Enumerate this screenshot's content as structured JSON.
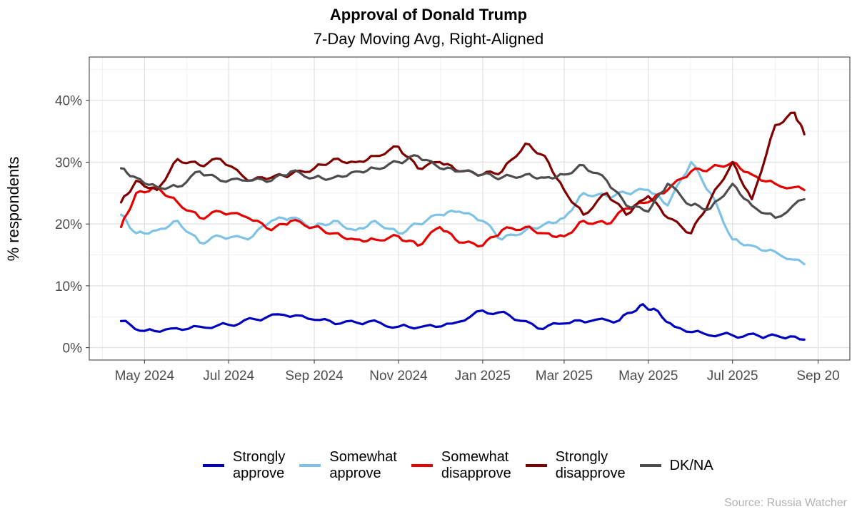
{
  "chart_data": {
    "type": "line",
    "title": "Approval of Donald Trump",
    "subtitle": "7-Day Moving Avg, Right-Aligned",
    "ylabel": "% respondents",
    "xlabel": "",
    "x_axis_type": "date",
    "xlim": [
      "2024-03-22",
      "2025-09-24"
    ],
    "ylim": [
      -2,
      47
    ],
    "y_ticks": [
      0,
      10,
      20,
      30,
      40
    ],
    "y_tick_labels": [
      "0%",
      "10%",
      "20%",
      "30%",
      "40%"
    ],
    "x_ticks": [
      "2024-05-01",
      "2024-07-01",
      "2024-09-01",
      "2024-11-01",
      "2025-01-01",
      "2025-03-01",
      "2025-05-01",
      "2025-07-01",
      "2025-09-01"
    ],
    "x_tick_labels": [
      "May 2024",
      "Jul 2024",
      "Sep 2024",
      "Nov 2024",
      "Jan 2025",
      "Mar 2025",
      "May 2025",
      "Jul 2025",
      "Sep 20"
    ],
    "grid": true,
    "legend_position": "bottom",
    "source": "Source: Russia Watcher",
    "series": [
      {
        "name": "Strongly\napprove",
        "color": "#0000bf",
        "x": [
          "2024-04-14",
          "2024-05-01",
          "2024-05-20",
          "2024-06-10",
          "2024-07-01",
          "2024-07-20",
          "2024-08-10",
          "2024-09-01",
          "2024-09-20",
          "2024-10-10",
          "2024-11-01",
          "2024-11-20",
          "2024-12-10",
          "2025-01-01",
          "2025-01-20",
          "2025-02-10",
          "2025-03-01",
          "2025-03-20",
          "2025-04-10",
          "2025-04-25",
          "2025-05-05",
          "2025-05-20",
          "2025-06-10",
          "2025-07-01",
          "2025-07-20",
          "2025-08-05",
          "2025-08-22"
        ],
        "y": [
          4.3,
          2.7,
          3.1,
          3.4,
          3.7,
          4.6,
          5.3,
          4.5,
          3.9,
          4.2,
          3.4,
          3.5,
          3.9,
          6.0,
          5.3,
          3.1,
          3.9,
          4.3,
          4.4,
          6.8,
          6.3,
          3.4,
          2.3,
          2.0,
          1.9,
          1.7,
          1.3
        ]
      },
      {
        "name": "Somewhat\napprove",
        "color": "#7ec3e6",
        "x": [
          "2024-04-14",
          "2024-04-25",
          "2024-05-10",
          "2024-05-25",
          "2024-06-10",
          "2024-06-25",
          "2024-07-15",
          "2024-08-01",
          "2024-08-15",
          "2024-09-01",
          "2024-09-15",
          "2024-10-01",
          "2024-10-15",
          "2024-11-01",
          "2024-11-15",
          "2024-12-01",
          "2024-12-15",
          "2025-01-01",
          "2025-01-15",
          "2025-02-01",
          "2025-02-15",
          "2025-03-01",
          "2025-03-15",
          "2025-04-01",
          "2025-04-15",
          "2025-05-01",
          "2025-05-15",
          "2025-06-01",
          "2025-06-15",
          "2025-07-01",
          "2025-07-15",
          "2025-08-01",
          "2025-08-22"
        ],
        "y": [
          21.5,
          18.5,
          19.0,
          20.5,
          17.0,
          18.0,
          17.5,
          20.5,
          21.0,
          19.5,
          20.5,
          19.0,
          20.5,
          18.5,
          20.0,
          21.5,
          22.0,
          20.5,
          17.5,
          19.0,
          20.0,
          21.0,
          25.0,
          24.5,
          25.0,
          25.5,
          23.0,
          30.0,
          25.0,
          17.5,
          16.5,
          15.5,
          13.5
        ]
      },
      {
        "name": "Somewhat\ndisapprove",
        "color": "#e60000",
        "x": [
          "2024-04-14",
          "2024-04-25",
          "2024-05-10",
          "2024-05-25",
          "2024-06-10",
          "2024-06-25",
          "2024-07-15",
          "2024-08-01",
          "2024-08-15",
          "2024-09-01",
          "2024-09-15",
          "2024-10-01",
          "2024-10-15",
          "2024-11-01",
          "2024-11-15",
          "2024-12-01",
          "2024-12-15",
          "2025-01-01",
          "2025-01-15",
          "2025-02-01",
          "2025-02-15",
          "2025-03-01",
          "2025-03-15",
          "2025-04-01",
          "2025-04-15",
          "2025-05-01",
          "2025-05-15",
          "2025-06-01",
          "2025-06-15",
          "2025-07-01",
          "2025-07-15",
          "2025-08-01",
          "2025-08-22"
        ],
        "y": [
          19.5,
          25.0,
          26.0,
          23.5,
          21.0,
          22.0,
          21.0,
          19.0,
          20.5,
          19.5,
          18.5,
          17.5,
          17.5,
          18.0,
          16.5,
          19.5,
          17.0,
          16.5,
          19.0,
          19.5,
          18.5,
          18.0,
          20.5,
          20.0,
          22.5,
          23.5,
          25.5,
          28.5,
          29.0,
          30.0,
          28.0,
          26.5,
          25.5
        ]
      },
      {
        "name": "Strongly\ndisapprove",
        "color": "#800000",
        "x": [
          "2024-04-14",
          "2024-04-25",
          "2024-05-10",
          "2024-05-25",
          "2024-06-10",
          "2024-06-25",
          "2024-07-15",
          "2024-08-01",
          "2024-08-15",
          "2024-09-01",
          "2024-09-15",
          "2024-10-01",
          "2024-10-15",
          "2024-11-01",
          "2024-11-15",
          "2024-12-01",
          "2024-12-15",
          "2025-01-01",
          "2025-01-15",
          "2025-02-01",
          "2025-02-15",
          "2025-03-01",
          "2025-03-15",
          "2025-04-01",
          "2025-04-15",
          "2025-05-01",
          "2025-05-15",
          "2025-06-01",
          "2025-06-15",
          "2025-07-01",
          "2025-07-15",
          "2025-08-01",
          "2025-08-15",
          "2025-08-22"
        ],
        "y": [
          23.5,
          27.0,
          25.5,
          30.5,
          29.5,
          30.5,
          27.0,
          27.5,
          28.0,
          29.0,
          30.5,
          30.0,
          31.0,
          32.5,
          29.0,
          30.0,
          28.5,
          28.0,
          28.5,
          33.0,
          31.0,
          25.5,
          21.5,
          25.0,
          21.5,
          24.5,
          21.0,
          18.5,
          24.0,
          30.0,
          24.0,
          36.0,
          38.0,
          34.5
        ]
      },
      {
        "name": "DK/NA",
        "color": "#4d4d4d",
        "x": [
          "2024-04-14",
          "2024-04-25",
          "2024-05-10",
          "2024-05-25",
          "2024-06-10",
          "2024-06-25",
          "2024-07-15",
          "2024-08-01",
          "2024-08-15",
          "2024-09-01",
          "2024-09-15",
          "2024-10-01",
          "2024-10-15",
          "2024-11-01",
          "2024-11-15",
          "2024-12-01",
          "2024-12-15",
          "2025-01-01",
          "2025-01-15",
          "2025-02-01",
          "2025-02-15",
          "2025-03-01",
          "2025-03-15",
          "2025-04-01",
          "2025-04-15",
          "2025-05-01",
          "2025-05-15",
          "2025-06-01",
          "2025-06-15",
          "2025-07-01",
          "2025-07-15",
          "2025-08-01",
          "2025-08-22"
        ],
        "y": [
          29.0,
          27.5,
          26.0,
          26.0,
          28.5,
          27.0,
          27.0,
          27.0,
          28.5,
          27.5,
          27.5,
          28.5,
          29.0,
          30.0,
          31.0,
          29.0,
          28.5,
          28.0,
          27.5,
          28.0,
          27.5,
          28.0,
          29.5,
          27.0,
          23.0,
          22.0,
          26.5,
          23.0,
          22.5,
          26.5,
          23.0,
          21.0,
          24.0
        ]
      }
    ]
  }
}
